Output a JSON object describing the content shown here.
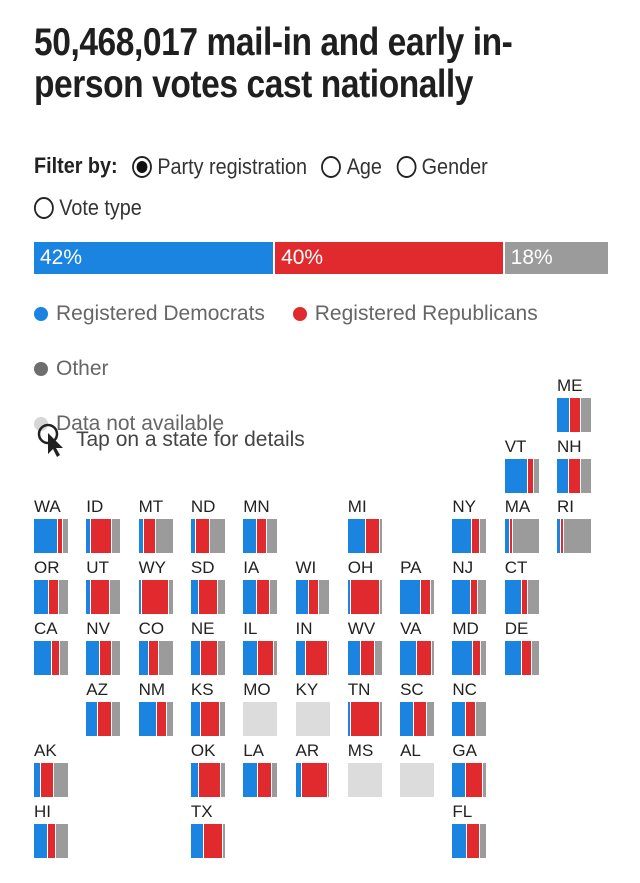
{
  "title": "50,468,017 mail-in and early in-person votes cast nationally",
  "filter": {
    "label": "Filter by:",
    "options": [
      {
        "label": "Party registration",
        "checked": true
      },
      {
        "label": "Age",
        "checked": false
      },
      {
        "label": "Gender",
        "checked": false
      },
      {
        "label": "Vote type",
        "checked": false
      }
    ]
  },
  "colors": {
    "dem": "#1b84e0",
    "rep": "#e02a2d",
    "other": "#9b9b9b",
    "na": "#dcdcdc"
  },
  "legend": [
    {
      "label": "Registered Democrats",
      "color": "#1b84e0"
    },
    {
      "label": "Registered Republicans",
      "color": "#e02a2d"
    },
    {
      "label": "Other",
      "color": "#6e6e6e"
    },
    {
      "label": "Data not available",
      "color": "#d6d6d6"
    }
  ],
  "tap_hint": "Tap on a state for details",
  "chart_data": {
    "type": "bar",
    "title": "50,468,017 mail-in and early in-person votes cast nationally",
    "national": {
      "categories": [
        "Registered Democrats",
        "Registered Republicans",
        "Other"
      ],
      "values": [
        42,
        40,
        18
      ],
      "labels": [
        "42%",
        "40%",
        "18%"
      ]
    },
    "states": [
      {
        "abbr": "ME",
        "col": 10,
        "row": 0,
        "values": [
          38,
          32,
          30
        ]
      },
      {
        "abbr": "VT",
        "col": 9,
        "row": 1,
        "values": [
          70,
          15,
          15
        ]
      },
      {
        "abbr": "NH",
        "col": 10,
        "row": 1,
        "values": [
          35,
          35,
          30
        ]
      },
      {
        "abbr": "WA",
        "col": 0,
        "row": 2,
        "values": [
          70,
          15,
          15
        ]
      },
      {
        "abbr": "ID",
        "col": 1,
        "row": 2,
        "values": [
          15,
          60,
          25
        ]
      },
      {
        "abbr": "MT",
        "col": 2,
        "row": 2,
        "values": [
          15,
          35,
          50
        ]
      },
      {
        "abbr": "ND",
        "col": 3,
        "row": 2,
        "values": [
          15,
          40,
          45
        ]
      },
      {
        "abbr": "MN",
        "col": 4,
        "row": 2,
        "values": [
          40,
          30,
          30
        ]
      },
      {
        "abbr": "MI",
        "col": 6,
        "row": 2,
        "values": [
          55,
          40,
          5
        ]
      },
      {
        "abbr": "NY",
        "col": 8,
        "row": 2,
        "values": [
          58,
          22,
          20
        ]
      },
      {
        "abbr": "MA",
        "col": 9,
        "row": 2,
        "values": [
          15,
          10,
          75
        ]
      },
      {
        "abbr": "RI",
        "col": 10,
        "row": 2,
        "values": [
          12,
          10,
          78
        ]
      },
      {
        "abbr": "OR",
        "col": 0,
        "row": 3,
        "values": [
          45,
          30,
          25
        ]
      },
      {
        "abbr": "UT",
        "col": 1,
        "row": 3,
        "values": [
          15,
          55,
          30
        ]
      },
      {
        "abbr": "WY",
        "col": 2,
        "row": 3,
        "values": [
          10,
          80,
          10
        ]
      },
      {
        "abbr": "SD",
        "col": 3,
        "row": 3,
        "values": [
          25,
          55,
          20
        ]
      },
      {
        "abbr": "IA",
        "col": 4,
        "row": 3,
        "values": [
          42,
          38,
          20
        ]
      },
      {
        "abbr": "WI",
        "col": 5,
        "row": 3,
        "values": [
          40,
          28,
          32
        ]
      },
      {
        "abbr": "OH",
        "col": 6,
        "row": 3,
        "values": [
          10,
          85,
          5
        ]
      },
      {
        "abbr": "PA",
        "col": 7,
        "row": 3,
        "values": [
          62,
          28,
          10
        ]
      },
      {
        "abbr": "NJ",
        "col": 8,
        "row": 3,
        "values": [
          55,
          20,
          25
        ]
      },
      {
        "abbr": "CT",
        "col": 9,
        "row": 3,
        "values": [
          50,
          20,
          30
        ]
      },
      {
        "abbr": "CA",
        "col": 0,
        "row": 4,
        "values": [
          52,
          24,
          24
        ]
      },
      {
        "abbr": "NV",
        "col": 1,
        "row": 4,
        "values": [
          40,
          35,
          25
        ]
      },
      {
        "abbr": "CO",
        "col": 2,
        "row": 4,
        "values": [
          30,
          30,
          40
        ]
      },
      {
        "abbr": "NE",
        "col": 3,
        "row": 4,
        "values": [
          30,
          50,
          20
        ]
      },
      {
        "abbr": "IL",
        "col": 4,
        "row": 4,
        "values": [
          45,
          45,
          10
        ]
      },
      {
        "abbr": "IN",
        "col": 5,
        "row": 4,
        "values": [
          30,
          65,
          5
        ]
      },
      {
        "abbr": "WV",
        "col": 6,
        "row": 4,
        "values": [
          40,
          40,
          20
        ]
      },
      {
        "abbr": "VA",
        "col": 7,
        "row": 4,
        "values": [
          50,
          45,
          5
        ]
      },
      {
        "abbr": "MD",
        "col": 8,
        "row": 4,
        "values": [
          60,
          25,
          15
        ]
      },
      {
        "abbr": "DE",
        "col": 9,
        "row": 4,
        "values": [
          50,
          30,
          20
        ]
      },
      {
        "abbr": "AZ",
        "col": 1,
        "row": 5,
        "values": [
          35,
          42,
          23
        ]
      },
      {
        "abbr": "NM",
        "col": 2,
        "row": 5,
        "values": [
          55,
          30,
          15
        ]
      },
      {
        "abbr": "KS",
        "col": 3,
        "row": 5,
        "values": [
          30,
          55,
          15
        ]
      },
      {
        "abbr": "MO",
        "col": 4,
        "row": 5,
        "values": null
      },
      {
        "abbr": "KY",
        "col": 5,
        "row": 5,
        "values": null
      },
      {
        "abbr": "TN",
        "col": 6,
        "row": 5,
        "values": [
          10,
          85,
          5
        ]
      },
      {
        "abbr": "SC",
        "col": 7,
        "row": 5,
        "values": [
          40,
          40,
          20
        ]
      },
      {
        "abbr": "NC",
        "col": 8,
        "row": 5,
        "values": [
          40,
          30,
          30
        ]
      },
      {
        "abbr": "AK",
        "col": 0,
        "row": 6,
        "values": [
          20,
          40,
          40
        ]
      },
      {
        "abbr": "OK",
        "col": 3,
        "row": 6,
        "values": [
          25,
          65,
          10
        ]
      },
      {
        "abbr": "LA",
        "col": 4,
        "row": 6,
        "values": [
          45,
          40,
          15
        ]
      },
      {
        "abbr": "AR",
        "col": 5,
        "row": 6,
        "values": [
          20,
          75,
          5
        ]
      },
      {
        "abbr": "MS",
        "col": 6,
        "row": 6,
        "values": null
      },
      {
        "abbr": "AL",
        "col": 7,
        "row": 6,
        "values": null
      },
      {
        "abbr": "GA",
        "col": 8,
        "row": 6,
        "values": [
          40,
          50,
          10
        ]
      },
      {
        "abbr": "HI",
        "col": 0,
        "row": 7,
        "values": [
          40,
          25,
          35
        ]
      },
      {
        "abbr": "TX",
        "col": 3,
        "row": 7,
        "values": [
          40,
          55,
          5
        ]
      },
      {
        "abbr": "FL",
        "col": 8,
        "row": 7,
        "values": [
          42,
          38,
          20
        ]
      }
    ]
  }
}
